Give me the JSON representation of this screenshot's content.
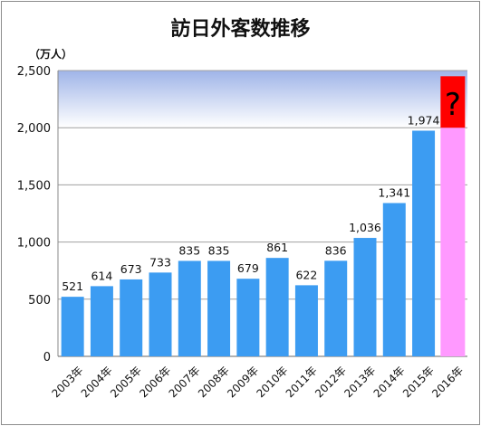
{
  "chart_data": {
    "type": "bar",
    "title": "訪日外客数推移",
    "unit_label": "（万人）",
    "categories": [
      "2003年",
      "2004年",
      "2005年",
      "2006年",
      "2007年",
      "2008年",
      "2009年",
      "2010年",
      "2011年",
      "2012年",
      "2013年",
      "2014年",
      "2015年",
      "2016年"
    ],
    "values": [
      521,
      614,
      673,
      733,
      835,
      835,
      679,
      861,
      622,
      836,
      1036,
      1341,
      1974,
      null
    ],
    "data_labels": [
      "521",
      "614",
      "673",
      "733",
      "835",
      "835",
      "679",
      "861",
      "622",
      "836",
      "1,036",
      "1,341",
      "1,974",
      ""
    ],
    "projection": {
      "category": "2016年",
      "value_range": [
        2000,
        2450
      ],
      "mark": "?"
    },
    "yticks": [
      "0",
      "500",
      "1,000",
      "1,500",
      "2,000",
      "2,500"
    ],
    "ylim": [
      0,
      2500
    ],
    "grid": true,
    "colors": {
      "bar": "#3c9cf2",
      "projection": "#ff99ff",
      "question_box": "#ff0000",
      "question_mark": "#000000"
    }
  }
}
